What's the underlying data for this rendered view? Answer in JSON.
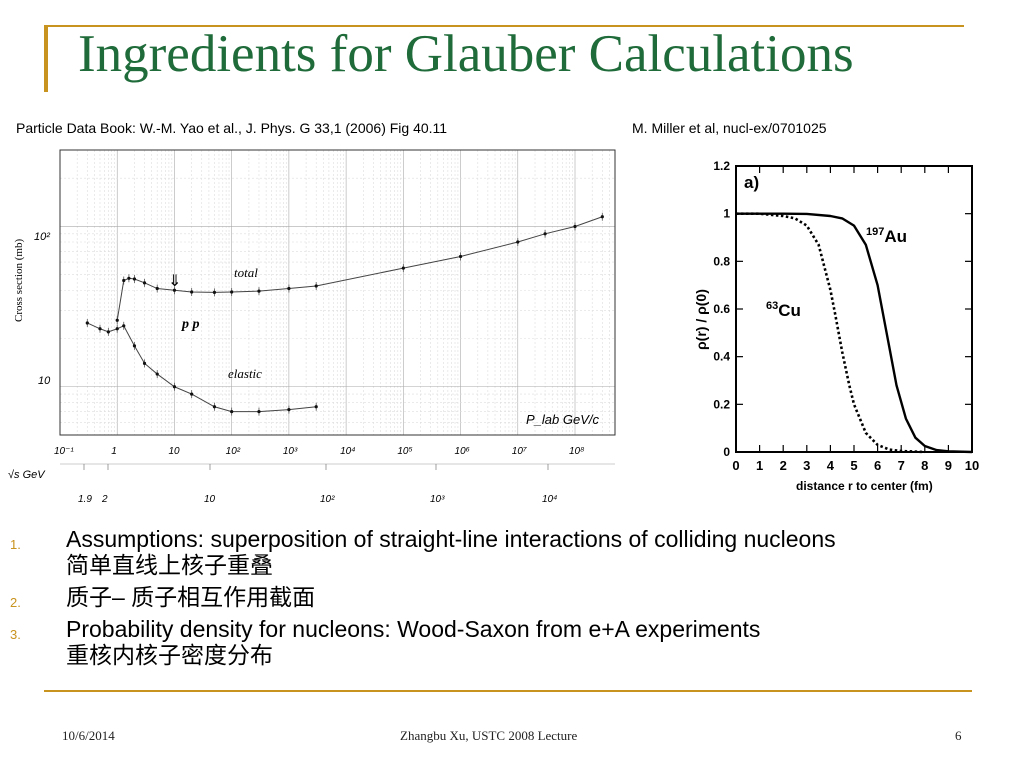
{
  "slide": {
    "title": "Ingredients for Glauber Calculations",
    "left_caption": "Particle Data Book: W.-M. Yao et al., J. Phys. G 33,1 (2006) Fig 40.11",
    "right_caption": "M. Miller et al, nucl-ex/0701025",
    "items": [
      {
        "num": "1.",
        "line1": "Assumptions: superposition of straight-line interactions of colliding nucleons",
        "line2": "简单直线上核子重叠"
      },
      {
        "num": "2.",
        "line1": "质子– 质子相互作用截面",
        "line2": ""
      },
      {
        "num": "3.",
        "line1": "Probability density for nucleons: Wood-Saxon from e+A experiments",
        "line2": "重核内核子密度分布"
      }
    ],
    "footer": {
      "date": "10/6/2014",
      "center": "Zhangbu Xu, USTC 2008 Lecture",
      "page": "6"
    },
    "colors": {
      "title": "#1f6b3a",
      "rule": "#c8931e",
      "bullet": "#c8931e"
    }
  },
  "chart_data": [
    {
      "type": "scatter",
      "title": "",
      "ylabel": "Cross section (mb)",
      "xlabel": "P_lab GeV/c",
      "x_scale": "log",
      "y_scale": "log",
      "xlim": [
        0.1,
        500000000
      ],
      "ylim": [
        5,
        300
      ],
      "x_ticks": [
        "10⁻¹",
        "1",
        "10",
        "10²",
        "10³",
        "10⁴",
        "10⁵",
        "10⁶",
        "10⁷",
        "10⁸"
      ],
      "y_ticks": [
        "10²",
        "10"
      ],
      "secondary_x_label": "√s GeV",
      "secondary_x_ticks": [
        "1.9",
        "2",
        "10",
        "10²",
        "10³",
        "10⁴"
      ],
      "annotations": [
        "total",
        "elastic",
        "p p",
        "⇓"
      ],
      "series": [
        {
          "name": "total",
          "x": [
            1.0,
            1.3,
            1.6,
            2,
            3,
            5,
            10,
            20,
            50,
            100,
            300,
            1000,
            3000,
            100000,
            1000000,
            10000000,
            30000000,
            100000000,
            300000000
          ],
          "y": [
            26,
            46,
            47.5,
            47,
            44.5,
            41,
            40,
            39,
            38.8,
            39,
            39.5,
            41,
            42.5,
            55,
            65,
            80,
            90,
            100,
            115
          ]
        },
        {
          "name": "elastic",
          "x": [
            0.3,
            0.5,
            0.7,
            1,
            1.3,
            2,
            3,
            5,
            10,
            20,
            50,
            100,
            300,
            1000,
            3000
          ],
          "y": [
            25,
            23,
            22,
            23,
            24,
            18,
            14,
            12,
            10,
            9,
            7.5,
            7,
            7,
            7.2,
            7.5
          ]
        }
      ]
    },
    {
      "type": "line",
      "title": "a)",
      "xlabel": "distance r to center (fm)",
      "ylabel": "ρ(r) / ρ(0)",
      "xlim": [
        0,
        10
      ],
      "ylim": [
        0,
        1.2
      ],
      "x_ticks": [
        0,
        1,
        2,
        3,
        4,
        5,
        6,
        7,
        8,
        9,
        10
      ],
      "y_ticks": [
        0,
        0.2,
        0.4,
        0.6,
        0.8,
        1,
        1.2
      ],
      "series": [
        {
          "name": "197Au",
          "label_sup": "197",
          "label_main": "Au",
          "style": "solid",
          "x": [
            0,
            1,
            2,
            3,
            4,
            4.5,
            5,
            5.5,
            6,
            6.38,
            6.8,
            7.2,
            7.6,
            8,
            8.5,
            9,
            10
          ],
          "y": [
            1,
            1,
            1,
            0.999,
            0.99,
            0.98,
            0.95,
            0.87,
            0.7,
            0.5,
            0.28,
            0.14,
            0.06,
            0.025,
            0.008,
            0.003,
            0
          ]
        },
        {
          "name": "63Cu",
          "label_sup": "63",
          "label_main": "Cu",
          "style": "dotted",
          "x": [
            0,
            1,
            2,
            2.5,
            3,
            3.5,
            4,
            4.2,
            4.5,
            4.8,
            5,
            5.5,
            6,
            6.5,
            7,
            8
          ],
          "y": [
            1,
            1,
            0.99,
            0.98,
            0.95,
            0.87,
            0.68,
            0.58,
            0.42,
            0.28,
            0.2,
            0.08,
            0.03,
            0.01,
            0.004,
            0
          ]
        }
      ]
    }
  ]
}
